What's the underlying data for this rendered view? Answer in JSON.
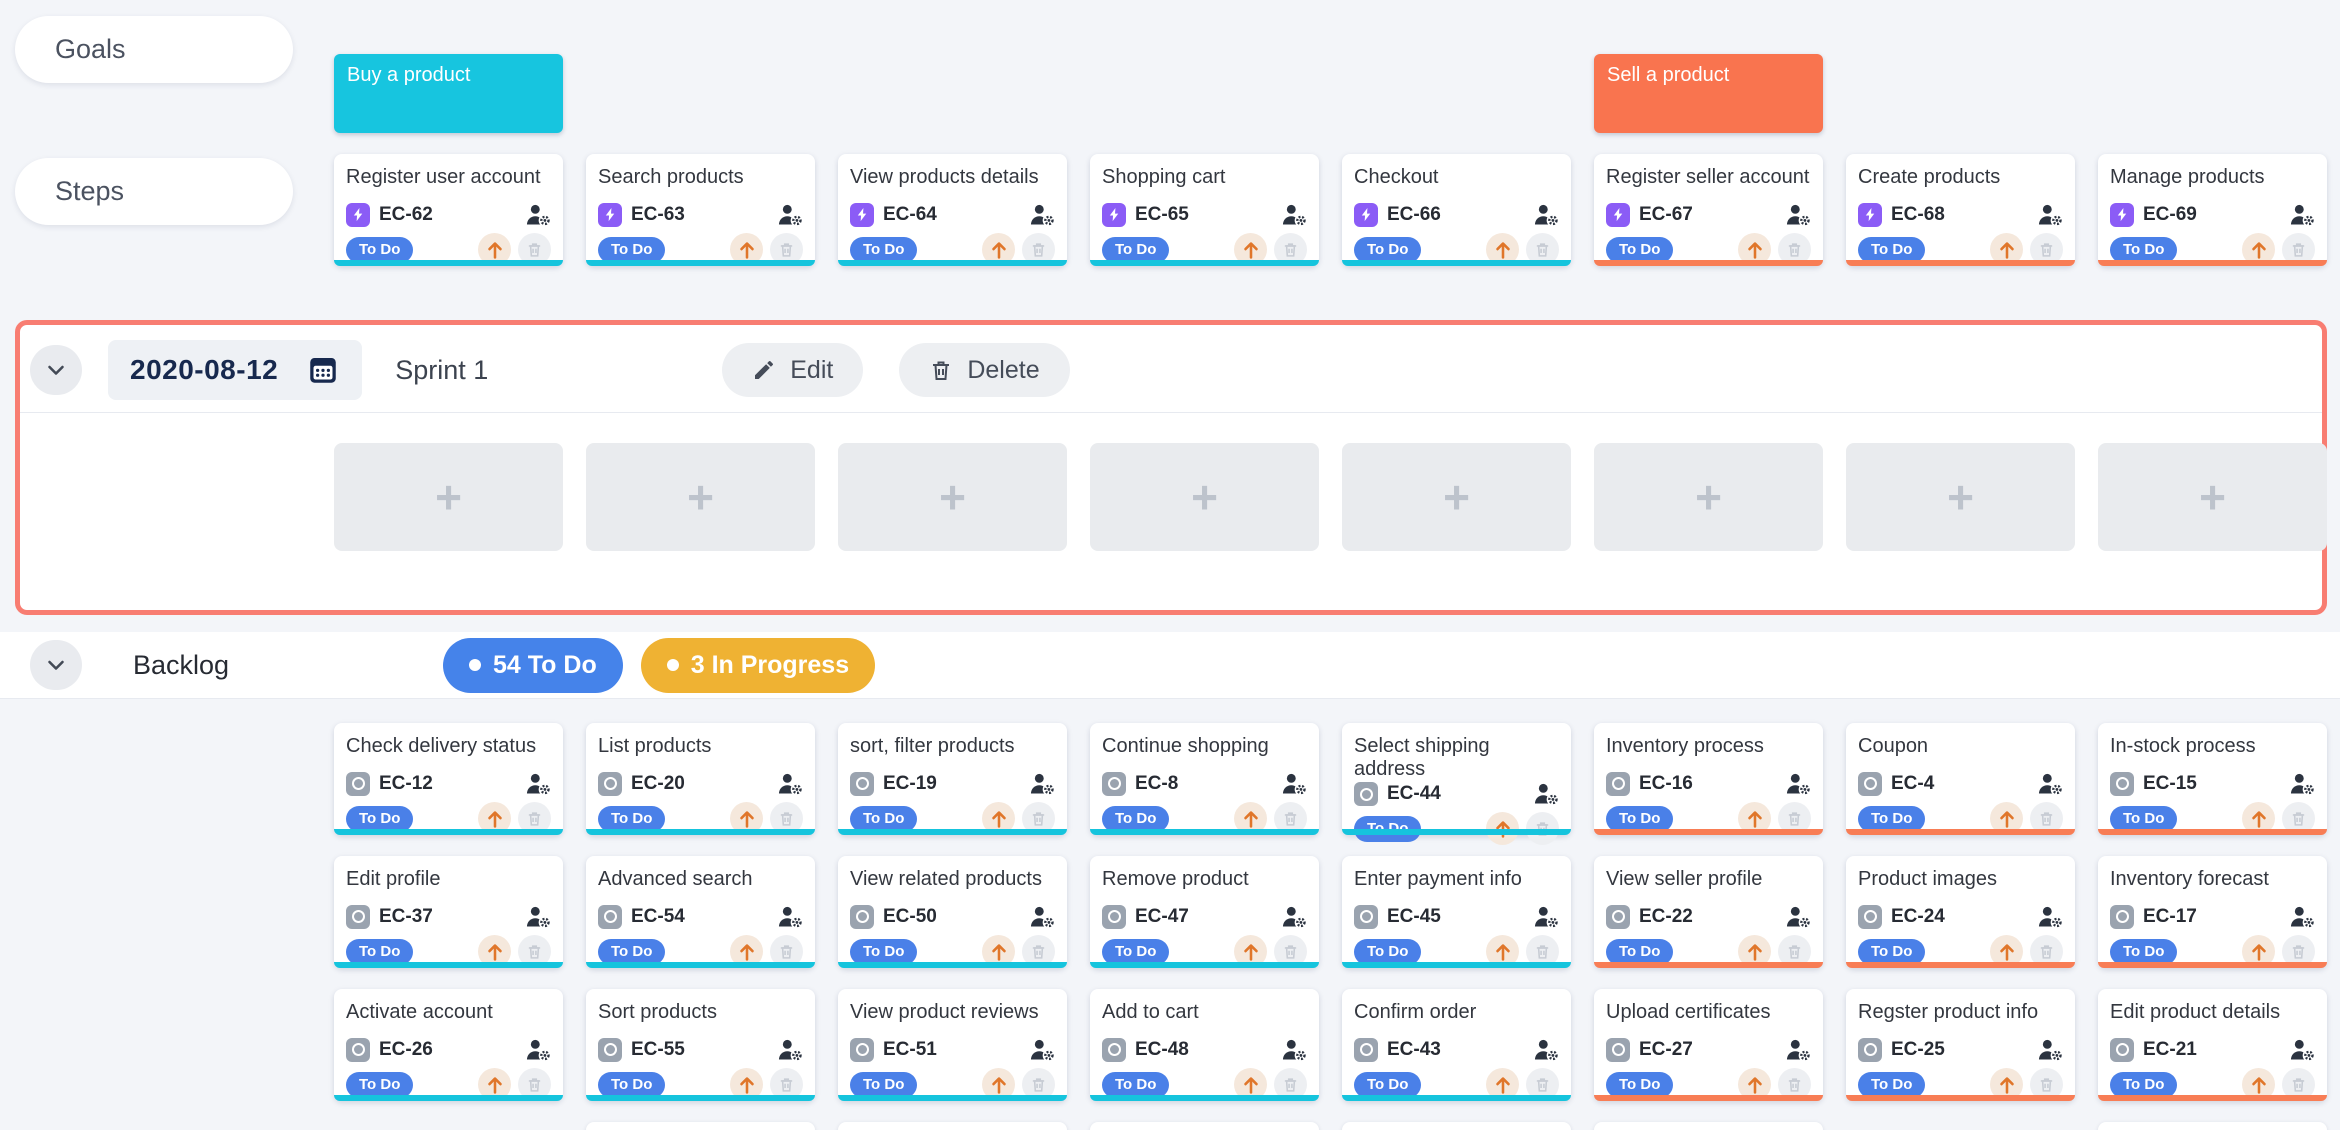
{
  "colors": {
    "cyan": "#15c4dd",
    "orange": "#f87d55",
    "goal_cyan": "#17c5df",
    "goal_orange": "#f9744f",
    "todo_blue": "#4583ea",
    "progress_yellow": "#efb233",
    "sprint_border": "#f87d72",
    "step_badge_purple": "#8b5cf6",
    "story_badge_gray": "#9aa3af"
  },
  "lanes": {
    "goals_label": "Goals",
    "steps_label": "Steps"
  },
  "goals": [
    {
      "title": "Buy a product",
      "column": 1,
      "color_key": "goal_cyan"
    },
    {
      "title": "Sell a product",
      "column": 6,
      "color_key": "goal_orange"
    }
  ],
  "steps": [
    {
      "title": "Register user account",
      "id": "EC-62",
      "status": "To Do",
      "type": "step",
      "bar": "cyan"
    },
    {
      "title": "Search products",
      "id": "EC-63",
      "status": "To Do",
      "type": "step",
      "bar": "cyan"
    },
    {
      "title": "View products details",
      "id": "EC-64",
      "status": "To Do",
      "type": "step",
      "bar": "cyan"
    },
    {
      "title": "Shopping cart",
      "id": "EC-65",
      "status": "To Do",
      "type": "step",
      "bar": "cyan"
    },
    {
      "title": "Checkout",
      "id": "EC-66",
      "status": "To Do",
      "type": "step",
      "bar": "cyan"
    },
    {
      "title": "Register seller account",
      "id": "EC-67",
      "status": "To Do",
      "type": "step",
      "bar": "orange"
    },
    {
      "title": "Create products",
      "id": "EC-68",
      "status": "To Do",
      "type": "step",
      "bar": "orange"
    },
    {
      "title": "Manage products",
      "id": "EC-69",
      "status": "To Do",
      "type": "step",
      "bar": "orange"
    }
  ],
  "sprint": {
    "date": "2020-08-12",
    "name": "Sprint 1",
    "edit_label": "Edit",
    "delete_label": "Delete",
    "add_placeholder": "+",
    "placeholder_columns": 8
  },
  "backlog": {
    "label": "Backlog",
    "badges": [
      {
        "count_text": "54 To Do",
        "color_key": "todo_blue"
      },
      {
        "count_text": "3 In Progress",
        "color_key": "progress_yellow"
      }
    ],
    "rows": [
      [
        {
          "title": "Check delivery status",
          "id": "EC-12",
          "status": "To Do",
          "type": "story",
          "bar": "cyan"
        },
        {
          "title": "List products",
          "id": "EC-20",
          "status": "To Do",
          "type": "story",
          "bar": "cyan"
        },
        {
          "title": "sort, filter products",
          "id": "EC-19",
          "status": "To Do",
          "type": "story",
          "bar": "cyan"
        },
        {
          "title": "Continue shopping",
          "id": "EC-8",
          "status": "To Do",
          "type": "story",
          "bar": "cyan"
        },
        {
          "title": "Select shipping address",
          "id": "EC-44",
          "status": "To Do",
          "type": "story",
          "bar": "cyan"
        },
        {
          "title": "Inventory process",
          "id": "EC-16",
          "status": "To Do",
          "type": "story",
          "bar": "orange"
        },
        {
          "title": "Coupon",
          "id": "EC-4",
          "status": "To Do",
          "type": "story",
          "bar": "orange"
        },
        {
          "title": "In-stock process",
          "id": "EC-15",
          "status": "To Do",
          "type": "story",
          "bar": "orange"
        }
      ],
      [
        {
          "title": "Edit profile",
          "id": "EC-37",
          "status": "To Do",
          "type": "story",
          "bar": "cyan"
        },
        {
          "title": "Advanced search",
          "id": "EC-54",
          "status": "To Do",
          "type": "story",
          "bar": "cyan"
        },
        {
          "title": "View related products",
          "id": "EC-50",
          "status": "To Do",
          "type": "story",
          "bar": "cyan"
        },
        {
          "title": "Remove product",
          "id": "EC-47",
          "status": "To Do",
          "type": "story",
          "bar": "cyan"
        },
        {
          "title": "Enter payment info",
          "id": "EC-45",
          "status": "To Do",
          "type": "story",
          "bar": "cyan"
        },
        {
          "title": "View seller profile",
          "id": "EC-22",
          "status": "To Do",
          "type": "story",
          "bar": "orange"
        },
        {
          "title": "Product images",
          "id": "EC-24",
          "status": "To Do",
          "type": "story",
          "bar": "orange"
        },
        {
          "title": "Inventory forecast",
          "id": "EC-17",
          "status": "To Do",
          "type": "story",
          "bar": "orange"
        }
      ],
      [
        {
          "title": "Activate account",
          "id": "EC-26",
          "status": "To Do",
          "type": "story",
          "bar": "cyan"
        },
        {
          "title": "Sort products",
          "id": "EC-55",
          "status": "To Do",
          "type": "story",
          "bar": "cyan"
        },
        {
          "title": "View product reviews",
          "id": "EC-51",
          "status": "To Do",
          "type": "story",
          "bar": "cyan"
        },
        {
          "title": "Add to cart",
          "id": "EC-48",
          "status": "To Do",
          "type": "story",
          "bar": "cyan"
        },
        {
          "title": "Confirm order",
          "id": "EC-43",
          "status": "To Do",
          "type": "story",
          "bar": "cyan"
        },
        {
          "title": "Upload certificates",
          "id": "EC-27",
          "status": "To Do",
          "type": "story",
          "bar": "orange"
        },
        {
          "title": "Regster product info",
          "id": "EC-25",
          "status": "To Do",
          "type": "story",
          "bar": "orange"
        },
        {
          "title": "Edit product details",
          "id": "EC-21",
          "status": "To Do",
          "type": "story",
          "bar": "orange"
        }
      ]
    ],
    "partial_next_row_columns": [
      2,
      3,
      4,
      5,
      6,
      8
    ]
  }
}
